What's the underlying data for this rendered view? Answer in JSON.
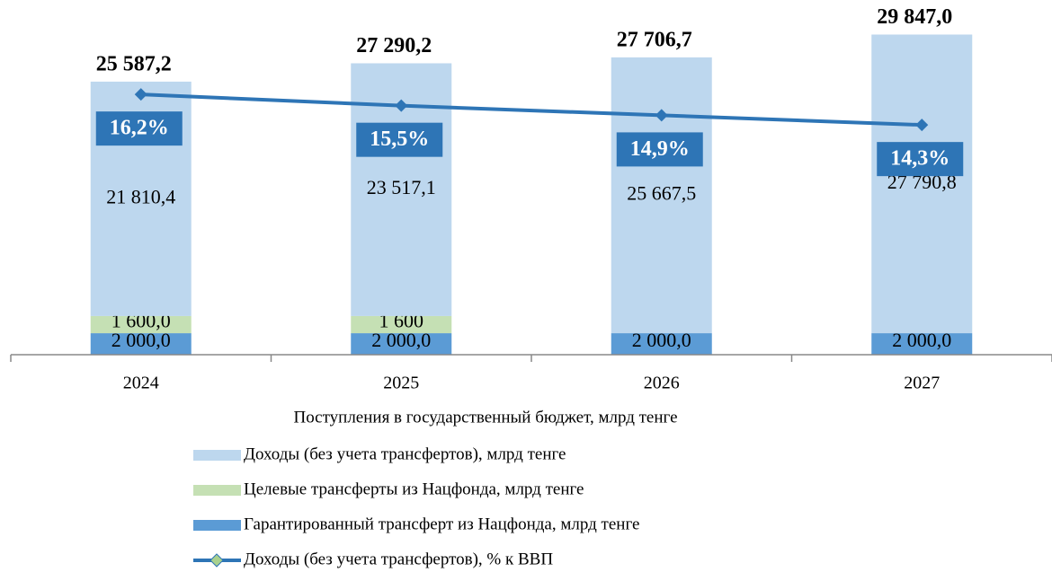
{
  "chart_data": {
    "type": "bar",
    "categories": [
      "2024",
      "2025",
      "2026",
      "2027"
    ],
    "series": [
      {
        "name": "Гарантированный трансферт из Нацфонда, млрд тенге",
        "color": "#5b9bd5",
        "values": [
          2000,
          2000,
          2000,
          2000
        ],
        "value_labels": [
          "2 000,0",
          "2 000,0",
          "2 000,0",
          "2 000,0"
        ]
      },
      {
        "name": "Целевые трансферты из Нацфонда, млрд тенге",
        "color": "#c5e0b4",
        "values": [
          1600,
          1600,
          null,
          null
        ],
        "value_labels": [
          "1 600,0",
          "1 600",
          null,
          null
        ]
      },
      {
        "name": "Доходы (без учета трансфертов), млрд тенге",
        "color": "#bdd7ee",
        "values": [
          21810.4,
          23517.1,
          25667.5,
          27790.8
        ],
        "value_labels": [
          "21 810,4",
          "23 517,1",
          "25 667,5",
          "27 790,8"
        ]
      },
      {
        "name": "Доходы (без учета трансфертов), % к ВВП",
        "type": "line",
        "axis": "y2",
        "color": "#2e75b6",
        "marker_color": "#a9d18e",
        "values": [
          16.2,
          15.5,
          14.9,
          14.3
        ],
        "value_labels": [
          "16,2%",
          "15,5%",
          "14,9%",
          "14,3%"
        ]
      }
    ],
    "totals": {
      "values": [
        25587.2,
        27290.2,
        27706.7,
        29847.0
      ],
      "value_labels": [
        "25 587,2",
        "27 290,2",
        "27 706,7",
        "29 847,0"
      ]
    },
    "legend_title": "Поступления в государственный бюджет, млрд тенге",
    "ylim": [
      0,
      30500
    ],
    "y2lim": [
      0,
      20.4
    ],
    "stacked": true
  }
}
